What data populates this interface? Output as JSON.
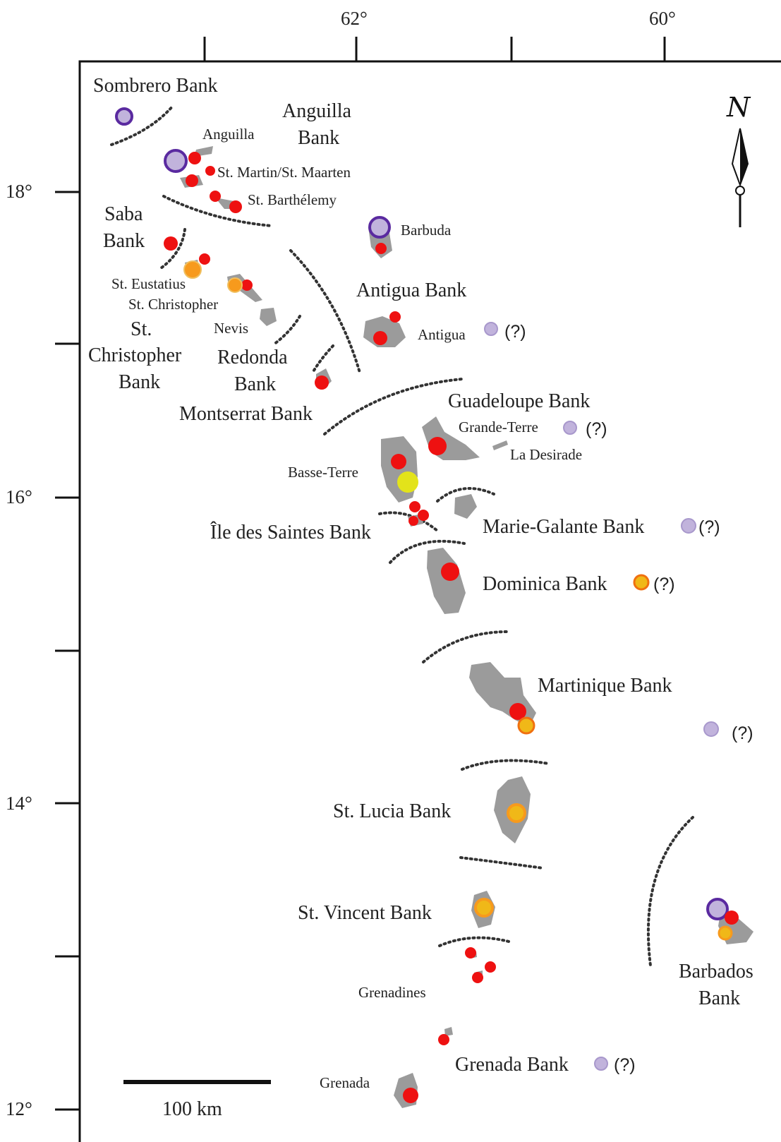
{
  "map": {
    "lon_ticks": [
      "62°",
      "60°"
    ],
    "lat_ticks": [
      "18°",
      "16°",
      "14°",
      "12°"
    ],
    "north_label": "N",
    "scale_label": "100 km",
    "banks": {
      "sombrero": "Sombrero Bank",
      "anguilla_1": "Anguilla",
      "anguilla_2": "Bank",
      "saba_1": "Saba",
      "saba_2": "Bank",
      "stchris_1": "St.",
      "stchris_2": "Christopher",
      "stchris_3": "Bank",
      "redonda_1": "Redonda",
      "redonda_2": "Bank",
      "montserrat": "Montserrat Bank",
      "antigua": "Antigua Bank",
      "guadeloupe": "Guadeloupe Bank",
      "saintes": "Île des Saintes Bank",
      "mariegalante": "Marie-Galante Bank",
      "dominica": "Dominica Bank",
      "martinique": "Martinique Bank",
      "stlucia": "St. Lucia Bank",
      "stvincent": "St. Vincent Bank",
      "grenada": "Grenada Bank",
      "barbados_1": "Barbados",
      "barbados_2": "Bank"
    },
    "islands": {
      "anguilla": "Anguilla",
      "stmartin": "St. Martin/St. Maarten",
      "stbarth": "St. Barthélemy",
      "barbuda": "Barbuda",
      "steustatius": "St. Eustatius",
      "stchristopher": "St. Christopher",
      "nevis": "Nevis",
      "antigua": "Antigua",
      "grandeterre": "Grande-Terre",
      "ladesirade": "La Desirade",
      "basseterre": "Basse-Terre",
      "grenadines": "Grenadines",
      "grenada": "Grenada"
    },
    "query_mark": "(?)",
    "colors": {
      "red": "#ee1111",
      "orange": "#f79a1d",
      "yellow": "#e3e31a",
      "purple_ring": "#5a2aa0",
      "lavender": "#c1b3dc",
      "island": "#9b9b9b"
    }
  }
}
